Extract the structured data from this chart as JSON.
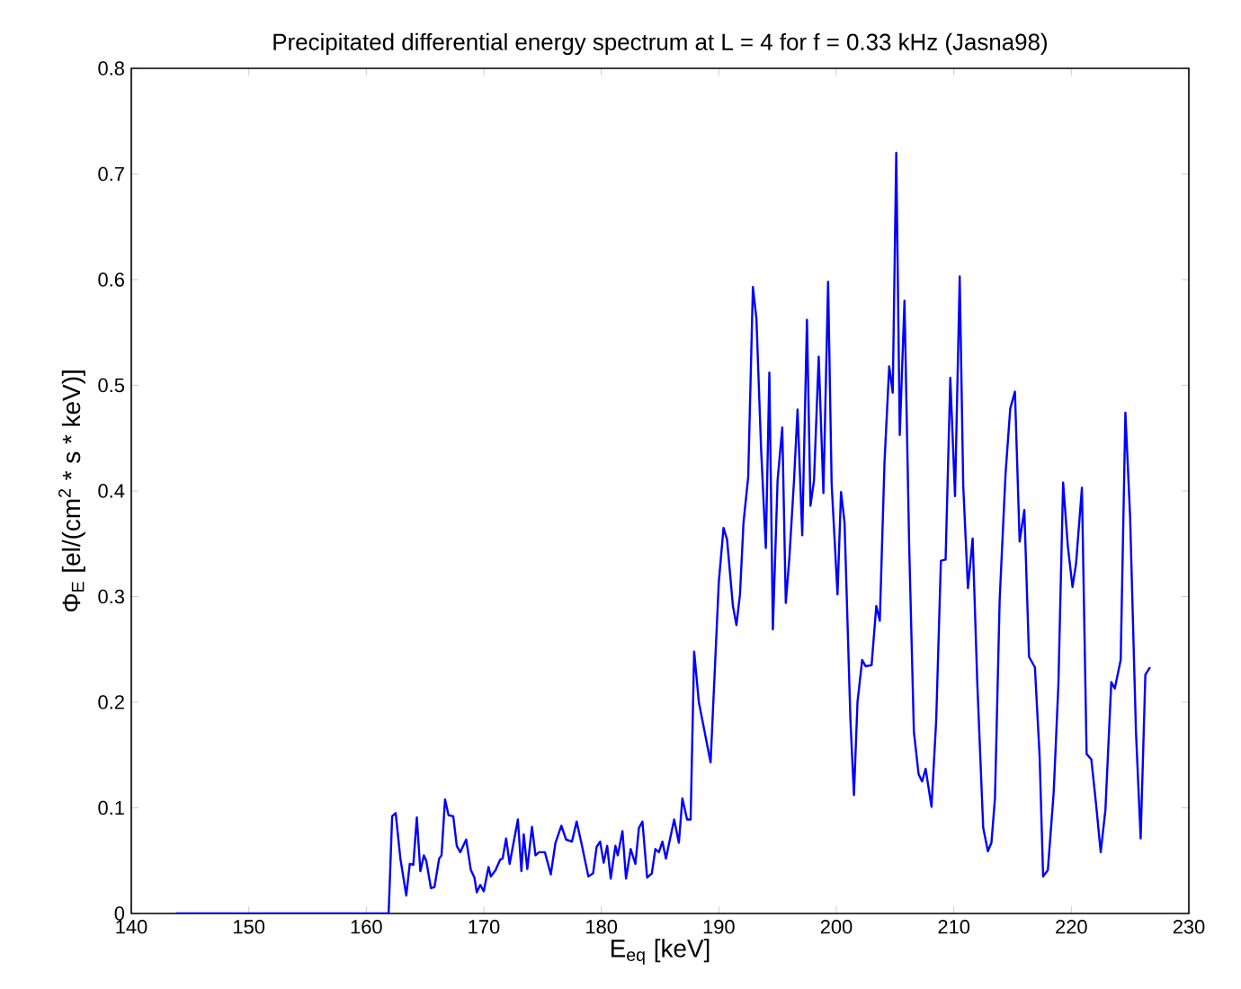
{
  "chart_data": {
    "type": "line",
    "title": "Precipitated differential energy spectrum at L = 4 for  f = 0.33 kHz  (Jasna98)",
    "xlabel": "E$_{eq}$ [keV]",
    "ylabel": "Φ$_{E}$ [el/(cm$^{2}$ * s * keV)]",
    "color": "#0000ff",
    "x": [
      143.8,
      161.9,
      162.2,
      162.5,
      162.9,
      163.4,
      163.7,
      164.0,
      164.3,
      164.6,
      164.9,
      165.1,
      165.5,
      165.8,
      166.2,
      166.4,
      166.7,
      167.0,
      167.4,
      167.7,
      168.0,
      168.5,
      168.9,
      169.2,
      169.4,
      169.7,
      170.0,
      170.4,
      170.6,
      171.0,
      171.4,
      171.6,
      171.9,
      172.2,
      172.6,
      172.9,
      173.2,
      173.4,
      173.7,
      174.1,
      174.4,
      174.7,
      175.2,
      175.7,
      176.1,
      176.6,
      177.0,
      177.5,
      177.9,
      178.3,
      178.9,
      179.3,
      179.6,
      179.9,
      180.2,
      180.5,
      180.8,
      181.2,
      181.4,
      181.8,
      182.1,
      182.5,
      182.9,
      183.2,
      183.5,
      183.9,
      184.3,
      184.6,
      184.9,
      185.2,
      185.5,
      185.8,
      186.2,
      186.6,
      186.9,
      187.3,
      187.6,
      187.9,
      188.3,
      189.3,
      190.0,
      190.4,
      190.7,
      191.2,
      191.5,
      191.8,
      192.1,
      192.5,
      192.9,
      193.2,
      193.6,
      194.0,
      194.3,
      194.6,
      195.0,
      195.4,
      195.7,
      196.0,
      196.4,
      196.7,
      197.1,
      197.5,
      197.8,
      198.1,
      198.5,
      198.9,
      199.3,
      199.6,
      200.1,
      200.4,
      200.7,
      201.2,
      201.5,
      201.8,
      202.2,
      202.5,
      203.0,
      203.4,
      203.7,
      204.1,
      204.5,
      204.8,
      205.1,
      205.4,
      205.8,
      206.2,
      206.6,
      207.0,
      207.3,
      207.6,
      208.1,
      208.5,
      208.9,
      209.3,
      209.7,
      210.1,
      210.5,
      210.8,
      211.2,
      211.6,
      212.0,
      212.5,
      212.9,
      213.2,
      213.5,
      213.9,
      214.4,
      214.8,
      215.2,
      215.6,
      216.0,
      216.4,
      216.9,
      217.3,
      217.6,
      218.0,
      218.5,
      218.9,
      219.3,
      219.7,
      220.1,
      220.4,
      220.9,
      221.3,
      221.7,
      222.1,
      222.5,
      222.9,
      223.4,
      223.7,
      224.2,
      224.6,
      225.0,
      225.5,
      225.9,
      226.3,
      226.7
    ],
    "values": [
      0,
      0,
      0.092,
      0.095,
      0.052,
      0.017,
      0.047,
      0.046,
      0.091,
      0.04,
      0.055,
      0.05,
      0.024,
      0.025,
      0.052,
      0.055,
      0.108,
      0.093,
      0.092,
      0.064,
      0.058,
      0.07,
      0.041,
      0.034,
      0.02,
      0.027,
      0.021,
      0.044,
      0.035,
      0.041,
      0.051,
      0.052,
      0.071,
      0.047,
      0.071,
      0.089,
      0.04,
      0.075,
      0.042,
      0.082,
      0.055,
      0.058,
      0.058,
      0.037,
      0.067,
      0.083,
      0.07,
      0.068,
      0.087,
      0.067,
      0.035,
      0.038,
      0.063,
      0.068,
      0.048,
      0.064,
      0.033,
      0.064,
      0.055,
      0.078,
      0.033,
      0.061,
      0.047,
      0.081,
      0.087,
      0.034,
      0.038,
      0.061,
      0.058,
      0.068,
      0.052,
      0.068,
      0.089,
      0.067,
      0.109,
      0.089,
      0.089,
      0.248,
      0.2,
      0.143,
      0.314,
      0.365,
      0.354,
      0.291,
      0.273,
      0.302,
      0.37,
      0.413,
      0.593,
      0.563,
      0.439,
      0.346,
      0.512,
      0.269,
      0.41,
      0.46,
      0.294,
      0.336,
      0.41,
      0.477,
      0.358,
      0.562,
      0.386,
      0.41,
      0.527,
      0.398,
      0.598,
      0.407,
      0.302,
      0.399,
      0.37,
      0.183,
      0.112,
      0.2,
      0.24,
      0.234,
      0.235,
      0.291,
      0.277,
      0.427,
      0.518,
      0.493,
      0.72,
      0.453,
      0.58,
      0.348,
      0.172,
      0.132,
      0.125,
      0.137,
      0.101,
      0.183,
      0.334,
      0.335,
      0.507,
      0.395,
      0.603,
      0.405,
      0.308,
      0.355,
      0.217,
      0.081,
      0.059,
      0.067,
      0.109,
      0.297,
      0.416,
      0.478,
      0.494,
      0.352,
      0.382,
      0.243,
      0.233,
      0.149,
      0.035,
      0.041,
      0.115,
      0.217,
      0.408,
      0.348,
      0.309,
      0.331,
      0.403,
      0.151,
      0.146,
      0.104,
      0.058,
      0.098,
      0.219,
      0.213,
      0.24,
      0.474,
      0.376,
      0.172,
      0.071,
      0.226,
      0.233
    ],
    "xlim": [
      140,
      230
    ],
    "ylim": [
      0,
      0.8
    ],
    "xticks": [
      140,
      150,
      160,
      170,
      180,
      190,
      200,
      210,
      220,
      230
    ],
    "yticks": [
      0,
      0.1,
      0.2,
      0.3,
      0.4,
      0.5,
      0.6,
      0.7,
      0.8
    ]
  }
}
